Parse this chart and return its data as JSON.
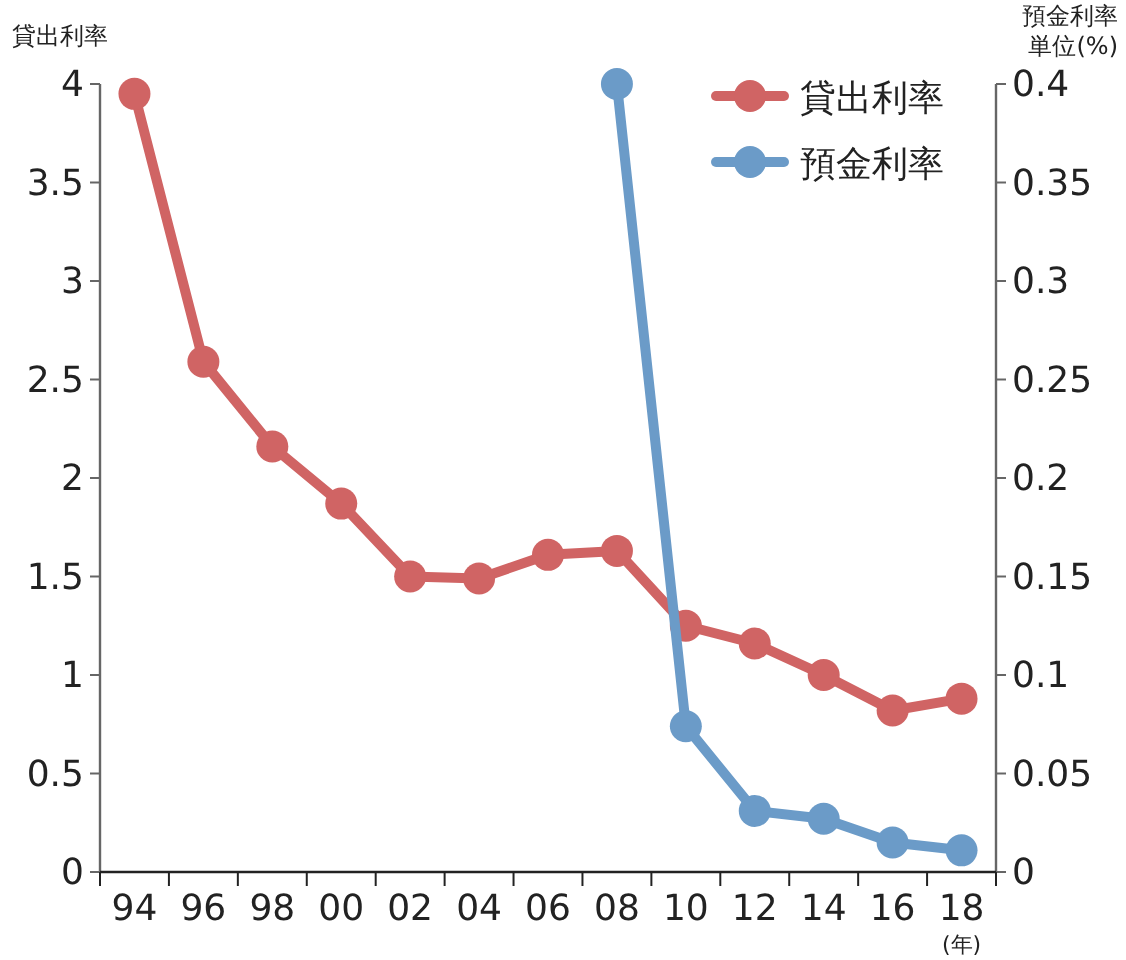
{
  "chart_data": {
    "type": "line",
    "ylabel": "貸出利率",
    "y2label": "預金利率単位(%)",
    "xlabel": "(年)",
    "categories": [
      "94",
      "96",
      "98",
      "00",
      "02",
      "04",
      "06",
      "08",
      "10",
      "12",
      "14",
      "16",
      "18"
    ],
    "series": [
      {
        "name": "貸出利率",
        "color": "#d06464",
        "values": [
          3.95,
          2.59,
          2.16,
          1.87,
          1.5,
          1.49,
          1.61,
          1.63,
          1.25,
          1.16,
          1.0,
          0.82,
          0.88
        ]
      },
      {
        "name": "預金利率",
        "color": "#6b9bc8",
        "axis": "y2",
        "values": [
          null,
          null,
          null,
          null,
          null,
          null,
          null,
          0.4,
          0.074,
          0.031,
          0.027,
          0.015,
          0.011
        ]
      }
    ],
    "ylim": [
      0,
      4
    ],
    "yticks": [
      0,
      0.5,
      1,
      1.5,
      2,
      2.5,
      3,
      3.5,
      4
    ],
    "y2lim": [
      0,
      0.4
    ],
    "y2ticks": [
      0,
      0.05,
      0.1,
      0.15,
      0.2,
      0.25,
      0.3,
      0.35,
      0.4
    ],
    "marker": "circle",
    "line_style": "solid",
    "legend": "top right",
    "grid": false
  }
}
